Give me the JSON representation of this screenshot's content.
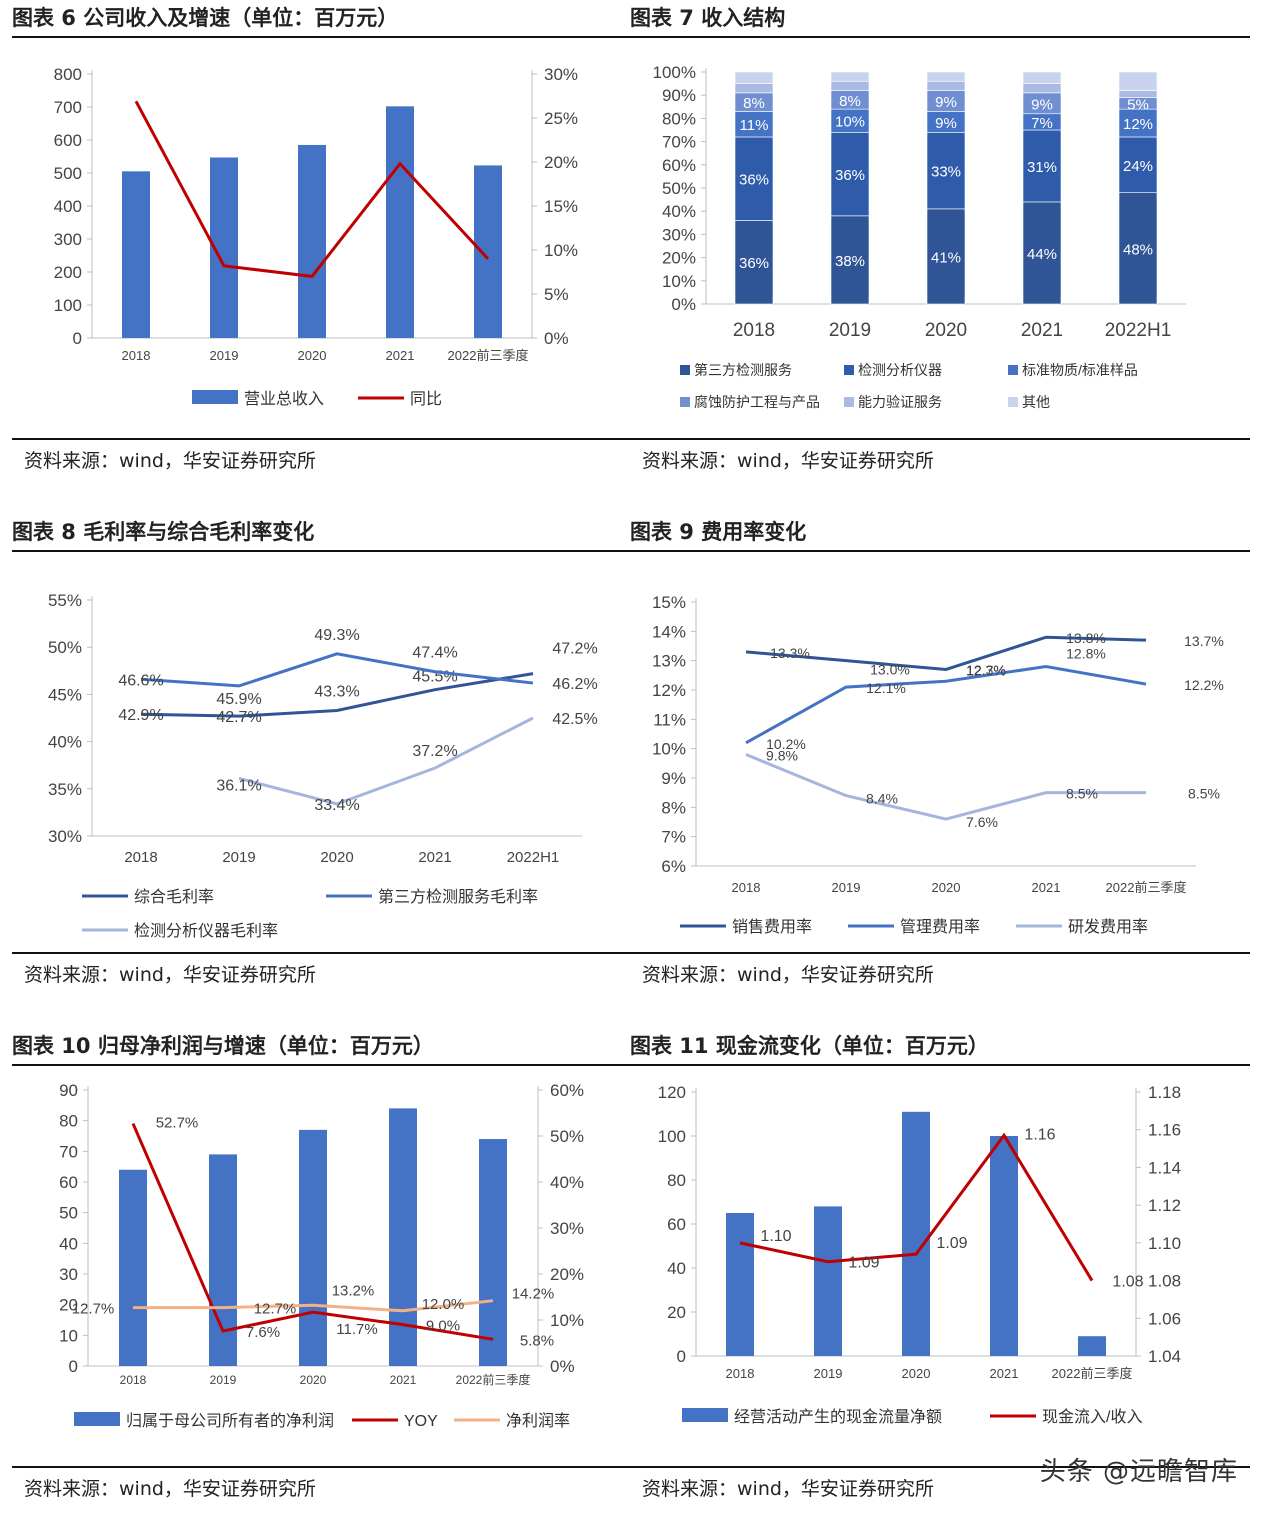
{
  "source_text": "资料来源：wind，华安证券研究所",
  "watermark": "头条 @远瞻智库",
  "colors": {
    "bar": "#4472C4",
    "dark_red": "#C00000",
    "dark_blue": "#2F5597",
    "mid_blue": "#4472C4",
    "light_blue": "#9DB0DA",
    "orange": "#F4B183"
  },
  "chart_data": [
    {
      "id": "c6",
      "title": "图表 6  公司收入及增速（单位：百万元）",
      "type": "bar",
      "categories": [
        "2018",
        "2019",
        "2020",
        "2021",
        "2022前三季度"
      ],
      "left_ticks": [
        "0",
        "100",
        "200",
        "300",
        "400",
        "500",
        "600",
        "700",
        "800"
      ],
      "right_ticks": [
        "0%",
        "5%",
        "10%",
        "15%",
        "20%",
        "25%",
        "30%"
      ],
      "ylim": [
        0,
        800
      ],
      "y2lim": [
        0,
        30
      ],
      "bars": {
        "name": "营业总收入",
        "values": [
          505,
          547,
          585,
          702,
          523
        ]
      },
      "lines": [
        {
          "name": "同比",
          "values": [
            26.9,
            8.2,
            7.0,
            19.8,
            9.0
          ],
          "color": "#C00000"
        }
      ]
    },
    {
      "id": "c7",
      "title": "图表 7  收入结构",
      "type": "bar",
      "stacked": true,
      "categories": [
        "2018",
        "2019",
        "2020",
        "2021",
        "2022H1"
      ],
      "y_ticks": [
        "0%",
        "10%",
        "20%",
        "30%",
        "40%",
        "50%",
        "60%",
        "70%",
        "80%",
        "90%",
        "100%"
      ],
      "ylim": [
        0,
        100
      ],
      "series": [
        {
          "name": "第三方检测服务",
          "values": [
            36,
            38,
            41,
            44,
            48
          ],
          "labels": [
            "36%",
            "38%",
            "41%",
            "44%",
            "48%"
          ],
          "color": "#2F5597"
        },
        {
          "name": "检测分析仪器",
          "values": [
            36,
            36,
            33,
            31,
            24
          ],
          "labels": [
            "36%",
            "36%",
            "33%",
            "31%",
            "24%"
          ],
          "color": "#2E5CAA"
        },
        {
          "name": "标准物质/标准样品",
          "values": [
            11,
            10,
            9,
            7,
            12
          ],
          "labels": [
            "11%",
            "10%",
            "9%",
            "7%",
            "12%"
          ],
          "color": "#4472C4"
        },
        {
          "name": "腐蚀防护工程与产品",
          "values": [
            8,
            8,
            9,
            9,
            5
          ],
          "labels": [
            "8%",
            "8%",
            "9%",
            "9%",
            "5%"
          ],
          "color": "#6F8FD0"
        },
        {
          "name": "能力验证服务",
          "values": [
            4,
            4,
            4,
            4,
            3
          ],
          "labels": [
            "",
            "",
            "",
            "",
            ""
          ],
          "color": "#A9BBE3"
        },
        {
          "name": "其他",
          "values": [
            5,
            4,
            4,
            5,
            8
          ],
          "labels": [
            "",
            "",
            "",
            "",
            ""
          ],
          "color": "#C9D3EE"
        }
      ]
    },
    {
      "id": "c8",
      "title": "图表 8  毛利率与综合毛利率变化",
      "type": "line",
      "categories": [
        "2018",
        "2019",
        "2020",
        "2021",
        "2022H1"
      ],
      "y_ticks": [
        "30%",
        "35%",
        "40%",
        "45%",
        "50%",
        "55%"
      ],
      "ylim": [
        30,
        55
      ],
      "series": [
        {
          "name": "综合毛利率",
          "values": [
            42.9,
            42.7,
            43.3,
            45.5,
            47.2
          ],
          "labels": [
            "42.9%",
            "42.7%",
            "43.3%",
            "45.5%",
            "47.2%"
          ],
          "color": "#2F5597"
        },
        {
          "name": "第三方检测服务毛利率",
          "values": [
            46.6,
            45.9,
            49.3,
            47.4,
            46.2
          ],
          "labels": [
            "46.6%",
            "45.9%",
            "49.3%",
            "47.4%",
            "46.2%"
          ],
          "color": "#4472C4"
        },
        {
          "name": "检测分析仪器毛利率",
          "values": [
            null,
            36.1,
            33.4,
            37.2,
            42.5
          ],
          "labels": [
            "",
            "36.1%",
            "33.4%",
            "37.2%",
            "42.5%"
          ],
          "color": "#A4B5DE"
        }
      ]
    },
    {
      "id": "c9",
      "title": "图表 9  费用率变化",
      "type": "line",
      "categories": [
        "2018",
        "2019",
        "2020",
        "2021",
        "2022前三季度"
      ],
      "y_ticks": [
        "6%",
        "7%",
        "8%",
        "9%",
        "10%",
        "11%",
        "12%",
        "13%",
        "14%",
        "15%"
      ],
      "ylim": [
        6,
        15
      ],
      "series": [
        {
          "name": "销售费用率",
          "values": [
            13.3,
            13.0,
            12.7,
            13.8,
            13.7
          ],
          "labels": [
            "13.3%",
            "13.0%",
            "12.7%",
            "13.8%",
            "13.7%"
          ],
          "color": "#2F5597"
        },
        {
          "name": "管理费用率",
          "values": [
            10.2,
            12.1,
            12.3,
            12.8,
            12.2
          ],
          "labels": [
            "10.2%",
            "12.1%",
            "12.3%",
            "12.8%",
            "12.2%"
          ],
          "color": "#4472C4"
        },
        {
          "name": "研发费用率",
          "values": [
            9.8,
            8.4,
            7.6,
            8.5,
            8.5
          ],
          "labels": [
            "9.8%",
            "8.4%",
            "7.6%",
            "8.5%",
            "8.5%"
          ],
          "color": "#A4B5DE"
        }
      ]
    },
    {
      "id": "c10",
      "title": "图表 10  归母净利润与增速（单位：百万元）",
      "type": "bar",
      "categories": [
        "2018",
        "2019",
        "2020",
        "2021",
        "2022前三季度"
      ],
      "left_ticks": [
        "0",
        "10",
        "20",
        "30",
        "40",
        "50",
        "60",
        "70",
        "80",
        "90"
      ],
      "right_ticks": [
        "0%",
        "10%",
        "20%",
        "30%",
        "40%",
        "50%",
        "60%"
      ],
      "ylim": [
        0,
        90
      ],
      "y2lim": [
        0,
        60
      ],
      "bars": {
        "name": "归属于母公司所有者的净利润",
        "values": [
          64,
          69,
          77,
          84,
          74
        ]
      },
      "lines": [
        {
          "name": "YOY",
          "values": [
            52.7,
            7.6,
            11.7,
            9.0,
            5.8
          ],
          "labels": [
            "52.7%",
            "7.6%",
            "11.7%",
            "9.0%",
            "5.8%"
          ],
          "color": "#C00000"
        },
        {
          "name": "净利润率",
          "values": [
            12.7,
            12.7,
            13.2,
            12.0,
            14.2
          ],
          "labels": [
            "12.7%",
            "12.7%",
            "13.2%",
            "12.0%",
            "14.2%"
          ],
          "color": "#F4B183"
        }
      ]
    },
    {
      "id": "c11",
      "title": "图表 11  现金流变化（单位：百万元）",
      "type": "bar",
      "categories": [
        "2018",
        "2019",
        "2020",
        "2021",
        "2022前三季度"
      ],
      "left_ticks": [
        "0",
        "20",
        "40",
        "60",
        "80",
        "100",
        "120"
      ],
      "right_ticks": [
        "1.04",
        "1.06",
        "1.08",
        "1.10",
        "1.12",
        "1.14",
        "1.16",
        "1.18"
      ],
      "ylim": [
        0,
        120
      ],
      "y2lim": [
        1.04,
        1.18
      ],
      "bars": {
        "name": "经营活动产生的现金流量净额",
        "values": [
          65,
          68,
          111,
          100,
          9
        ]
      },
      "lines": [
        {
          "name": "现金流入/收入",
          "values": [
            1.1,
            1.09,
            1.094,
            1.157,
            1.08
          ],
          "labels": [
            "1.10",
            "1.09",
            "1.09",
            "1.16",
            "1.08"
          ],
          "color": "#C00000"
        }
      ]
    }
  ]
}
